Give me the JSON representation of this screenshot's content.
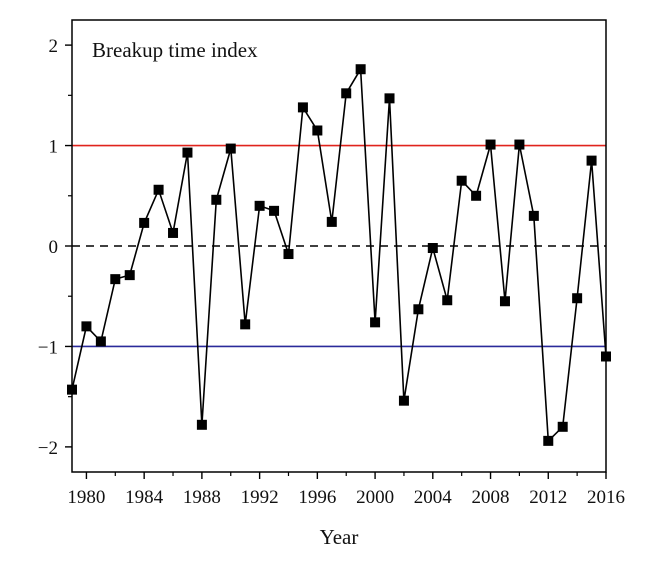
{
  "chart_data": {
    "type": "line",
    "title": "Breakup time index",
    "xlabel": "Year",
    "ylabel": "",
    "xlim": [
      1979,
      2016
    ],
    "ylim": [
      -2.25,
      2.25
    ],
    "x_ticks": [
      1980,
      1984,
      1988,
      1992,
      1996,
      2000,
      2004,
      2008,
      2012,
      2016
    ],
    "y_ticks": [
      2,
      1,
      0,
      -1,
      -2
    ],
    "y_tick_labels": [
      "2",
      "1",
      "0",
      "−1",
      "−2"
    ],
    "grid": false,
    "marker": "square",
    "series": [
      {
        "x": [
          1979,
          1980,
          1981,
          1982,
          1983,
          1984,
          1985,
          1986,
          1987,
          1988,
          1989,
          1990,
          1991,
          1992,
          1993,
          1994,
          1995,
          1996,
          1997,
          1998,
          1999,
          2000,
          2001,
          2002,
          2003,
          2004,
          2005,
          2006,
          2007,
          2008,
          2009,
          2010,
          2011,
          2012,
          2013,
          2014,
          2015,
          2016
        ],
        "values": [
          -1.43,
          -0.8,
          -0.95,
          -0.33,
          -0.29,
          0.23,
          0.56,
          0.13,
          0.93,
          -1.78,
          0.46,
          0.97,
          -0.78,
          0.4,
          0.35,
          -0.08,
          1.38,
          1.15,
          0.24,
          1.52,
          1.76,
          -0.76,
          1.47,
          -1.54,
          -0.63,
          -0.02,
          -0.54,
          0.65,
          0.5,
          1.01,
          -0.55,
          1.01,
          0.3,
          -1.94,
          -1.8,
          -0.52,
          0.85,
          -1.1
        ],
        "color": "#000000"
      }
    ],
    "reference_lines": [
      {
        "y": 1,
        "color": "#e0231c",
        "style": "solid"
      },
      {
        "y": 0,
        "color": "#000000",
        "style": "dashed"
      },
      {
        "y": -1,
        "color": "#2a2a9a",
        "style": "solid"
      }
    ]
  }
}
